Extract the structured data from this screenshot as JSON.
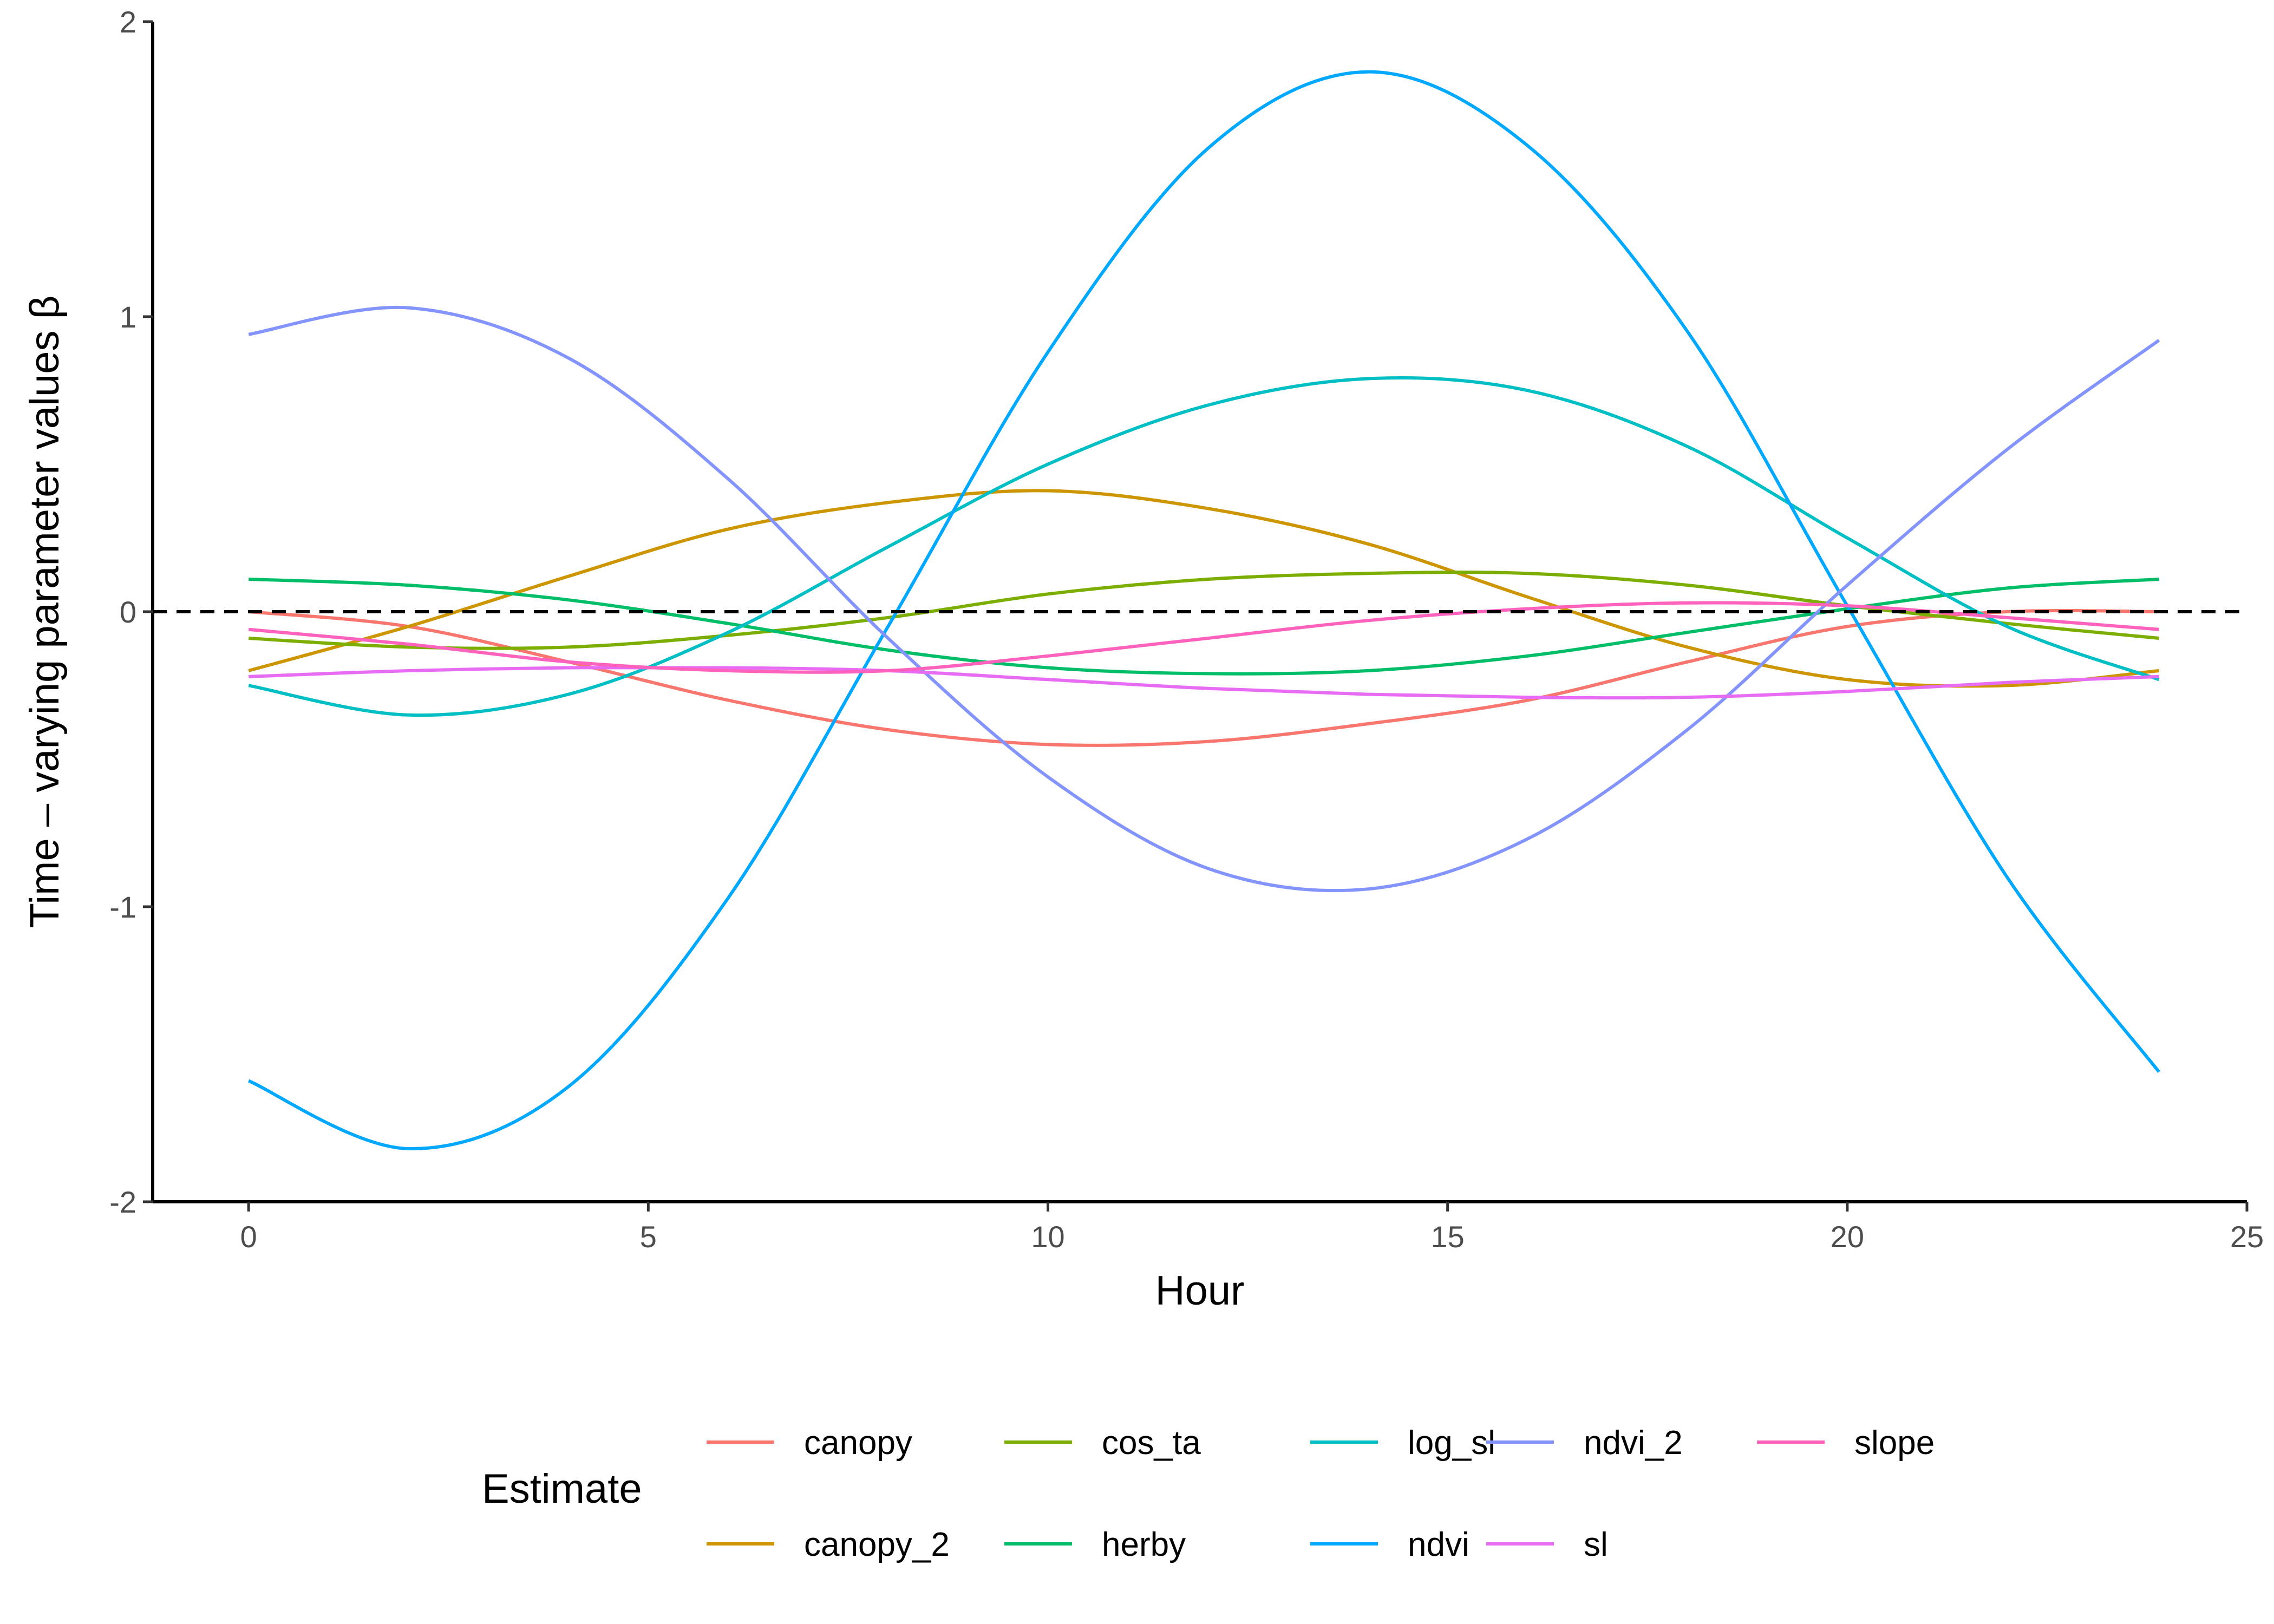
{
  "chart_data": {
    "type": "line",
    "xlabel": "Hour",
    "ylabel": "Time – varying parameter values β",
    "xlim": [
      -1.2,
      25
    ],
    "ylim": [
      -2,
      2
    ],
    "xticks": [
      0,
      5,
      10,
      15,
      20,
      25
    ],
    "yticks": [
      -2,
      -1,
      0,
      1,
      2
    ],
    "grid": false,
    "reference_line": {
      "y": 0,
      "style": "dashed",
      "color": "#000000"
    },
    "legend": {
      "title": "Estimate",
      "position": "bottom"
    },
    "x": [
      0,
      2,
      4,
      6,
      8,
      10,
      12,
      14,
      16,
      18,
      20,
      22,
      23.9
    ],
    "series": [
      {
        "name": "canopy",
        "color": "#F8766D",
        "values": [
          0.0,
          -0.05,
          -0.17,
          -0.3,
          -0.4,
          -0.45,
          -0.44,
          -0.38,
          -0.3,
          -0.17,
          -0.05,
          0.0,
          0.0
        ]
      },
      {
        "name": "canopy_2",
        "color": "#CD9600",
        "values": [
          -0.2,
          -0.05,
          0.12,
          0.28,
          0.37,
          0.41,
          0.35,
          0.23,
          0.05,
          -0.12,
          -0.23,
          -0.25,
          -0.2
        ]
      },
      {
        "name": "cos_ta",
        "color": "#7CAE00",
        "values": [
          -0.09,
          -0.12,
          -0.12,
          -0.08,
          -0.02,
          0.06,
          0.11,
          0.13,
          0.13,
          0.09,
          0.02,
          -0.04,
          -0.09
        ]
      },
      {
        "name": "herby",
        "color": "#00BE67",
        "values": [
          0.11,
          0.09,
          0.04,
          -0.04,
          -0.13,
          -0.19,
          -0.21,
          -0.2,
          -0.15,
          -0.07,
          0.01,
          0.08,
          0.11
        ]
      },
      {
        "name": "log_sl",
        "color": "#00BFC4",
        "values": [
          -0.25,
          -0.35,
          -0.28,
          -0.07,
          0.22,
          0.5,
          0.7,
          0.79,
          0.75,
          0.56,
          0.25,
          -0.05,
          -0.23
        ]
      },
      {
        "name": "ndvi",
        "color": "#00A9FF",
        "values": [
          -1.59,
          -1.82,
          -1.61,
          -0.97,
          -0.05,
          0.88,
          1.57,
          1.83,
          1.58,
          0.95,
          0.02,
          -0.9,
          -1.56
        ]
      },
      {
        "name": "ndvi_2",
        "color": "#8494FF",
        "values": [
          0.94,
          1.03,
          0.86,
          0.45,
          -0.09,
          -0.56,
          -0.87,
          -0.94,
          -0.77,
          -0.4,
          0.09,
          0.55,
          0.92
        ]
      },
      {
        "name": "sl",
        "color": "#E76BF3",
        "values": [
          -0.22,
          -0.2,
          -0.19,
          -0.19,
          -0.2,
          -0.23,
          -0.26,
          -0.28,
          -0.29,
          -0.29,
          -0.27,
          -0.24,
          -0.22
        ]
      },
      {
        "name": "slope",
        "color": "#FF62BC",
        "values": [
          -0.06,
          -0.11,
          -0.17,
          -0.2,
          -0.2,
          -0.15,
          -0.09,
          -0.03,
          0.01,
          0.03,
          0.02,
          -0.02,
          -0.06
        ]
      }
    ]
  }
}
